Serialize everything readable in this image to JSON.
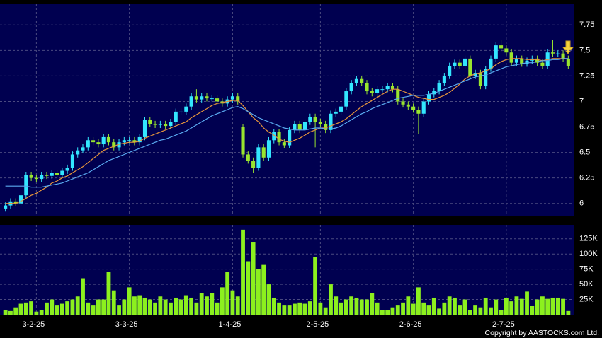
{
  "chart_data": [
    {
      "type": "candlestick",
      "up_color": "#33e6ff",
      "down_color": "#99e62e",
      "grid": true,
      "ylim": [
        5.88,
        7.96
      ],
      "yticks": [
        6,
        6.25,
        6.5,
        6.75,
        7,
        7.25,
        7.5,
        7.75
      ],
      "open": [
        5.95,
        5.98,
        6.02,
        6.0,
        6.08,
        6.28,
        6.25,
        6.24,
        6.28,
        6.27,
        6.3,
        6.28,
        6.32,
        6.35,
        6.48,
        6.52,
        6.55,
        6.62,
        6.6,
        6.58,
        6.65,
        6.6,
        6.55,
        6.6,
        6.62,
        6.62,
        6.6,
        6.65,
        6.82,
        6.78,
        6.77,
        6.78,
        6.76,
        6.8,
        6.9,
        6.9,
        6.95,
        7.05,
        7.02,
        7.05,
        7.03,
        7.03,
        7.0,
        6.98,
        7.02,
        7.05,
        6.75,
        6.48,
        6.42,
        6.35,
        6.55,
        6.45,
        6.62,
        6.7,
        6.6,
        6.57,
        6.72,
        6.78,
        6.72,
        6.8,
        6.85,
        6.8,
        6.78,
        6.72,
        6.88,
        6.9,
        6.95,
        7.1,
        7.18,
        7.22,
        7.18,
        7.1,
        7.08,
        7.12,
        7.12,
        7.15,
        7.12,
        7.0,
        6.97,
        6.95,
        6.92,
        6.88,
        7.0,
        7.07,
        7.1,
        7.18,
        7.25,
        7.35,
        7.38,
        7.35,
        7.42,
        7.25,
        7.28,
        7.15,
        7.32,
        7.42,
        7.55,
        7.52,
        7.48,
        7.38,
        7.42,
        7.37,
        7.4,
        7.42,
        7.38,
        7.35,
        7.48,
        7.47,
        7.47,
        7.42
      ],
      "high": [
        6.01,
        6.05,
        6.05,
        6.11,
        6.31,
        6.31,
        6.28,
        6.31,
        6.31,
        6.33,
        6.33,
        6.35,
        6.38,
        6.51,
        6.55,
        6.58,
        6.65,
        6.65,
        6.63,
        6.68,
        6.68,
        6.63,
        6.63,
        6.65,
        6.65,
        6.65,
        6.68,
        6.85,
        6.85,
        6.81,
        6.81,
        6.81,
        6.83,
        6.93,
        6.93,
        6.98,
        7.08,
        7.12,
        7.08,
        7.08,
        7.06,
        7.06,
        7.03,
        7.05,
        7.08,
        7.08,
        6.78,
        6.51,
        6.45,
        6.58,
        6.58,
        6.65,
        6.73,
        6.73,
        6.63,
        6.75,
        6.81,
        6.81,
        6.83,
        6.88,
        6.88,
        6.83,
        6.81,
        6.91,
        6.93,
        6.98,
        7.13,
        7.21,
        7.25,
        7.25,
        7.21,
        7.13,
        7.15,
        7.15,
        7.18,
        7.18,
        7.15,
        7.03,
        7.0,
        6.98,
        6.95,
        7.03,
        7.1,
        7.13,
        7.21,
        7.28,
        7.38,
        7.41,
        7.41,
        7.45,
        7.45,
        7.31,
        7.31,
        7.35,
        7.45,
        7.58,
        7.6,
        7.55,
        7.51,
        7.45,
        7.45,
        7.43,
        7.45,
        7.45,
        7.41,
        7.51,
        7.6,
        7.5,
        7.5,
        7.45
      ],
      "low": [
        5.92,
        5.95,
        5.97,
        5.97,
        6.05,
        6.22,
        6.21,
        6.21,
        6.24,
        6.24,
        6.25,
        6.25,
        6.29,
        6.32,
        6.45,
        6.49,
        6.52,
        6.57,
        6.55,
        6.55,
        6.57,
        6.52,
        6.52,
        6.57,
        6.59,
        6.57,
        6.57,
        6.62,
        6.75,
        6.74,
        6.74,
        6.73,
        6.73,
        6.77,
        6.87,
        6.87,
        6.92,
        6.99,
        6.99,
        7.0,
        7.0,
        6.97,
        6.95,
        6.95,
        6.99,
        6.97,
        6.45,
        6.39,
        6.3,
        6.32,
        6.42,
        6.42,
        6.59,
        6.57,
        6.54,
        6.54,
        6.69,
        6.69,
        6.69,
        6.77,
        6.55,
        6.75,
        6.69,
        6.69,
        6.85,
        6.87,
        6.92,
        7.07,
        7.15,
        7.15,
        7.07,
        7.05,
        7.05,
        7.09,
        7.09,
        7.09,
        6.97,
        6.94,
        6.92,
        6.89,
        6.68,
        6.85,
        6.97,
        7.04,
        7.07,
        7.15,
        7.22,
        7.32,
        7.32,
        7.32,
        7.22,
        7.22,
        7.12,
        7.12,
        7.29,
        7.39,
        7.49,
        7.45,
        7.35,
        7.35,
        7.34,
        7.34,
        7.37,
        7.35,
        7.32,
        7.32,
        7.44,
        7.44,
        7.39,
        7.32
      ],
      "close": [
        5.98,
        6.02,
        6.0,
        6.08,
        6.28,
        6.25,
        6.24,
        6.28,
        6.27,
        6.3,
        6.28,
        6.32,
        6.35,
        6.48,
        6.52,
        6.55,
        6.62,
        6.6,
        6.58,
        6.65,
        6.6,
        6.55,
        6.6,
        6.62,
        6.62,
        6.6,
        6.65,
        6.82,
        6.78,
        6.77,
        6.78,
        6.76,
        6.8,
        6.9,
        6.9,
        6.95,
        7.05,
        7.02,
        7.05,
        7.03,
        7.03,
        7.0,
        6.98,
        7.02,
        7.05,
        7.0,
        6.48,
        6.42,
        6.35,
        6.55,
        6.45,
        6.62,
        6.7,
        6.6,
        6.57,
        6.72,
        6.78,
        6.72,
        6.8,
        6.85,
        6.8,
        6.78,
        6.72,
        6.88,
        6.9,
        6.95,
        7.1,
        7.18,
        7.22,
        7.18,
        7.1,
        7.08,
        7.12,
        7.12,
        7.15,
        7.12,
        7.0,
        6.97,
        6.95,
        6.92,
        6.88,
        7.0,
        7.07,
        7.1,
        7.18,
        7.25,
        7.35,
        7.38,
        7.35,
        7.42,
        7.25,
        7.28,
        7.15,
        7.32,
        7.42,
        7.55,
        7.52,
        7.48,
        7.38,
        7.42,
        7.37,
        7.4,
        7.42,
        7.38,
        7.35,
        7.48,
        7.47,
        7.47,
        7.42,
        7.35
      ],
      "series": [
        {
          "color": "#e8963c",
          "values": [
            6.0,
            6.0,
            6.0,
            6.02,
            6.05,
            6.08,
            6.1,
            6.13,
            6.16,
            6.2,
            6.22,
            6.25,
            6.27,
            6.3,
            6.33,
            6.36,
            6.4,
            6.44,
            6.48,
            6.52,
            6.54,
            6.56,
            6.58,
            6.59,
            6.6,
            6.6,
            6.61,
            6.64,
            6.66,
            6.68,
            6.7,
            6.72,
            6.74,
            6.76,
            6.78,
            6.8,
            6.84,
            6.87,
            6.9,
            6.93,
            6.96,
            6.98,
            6.99,
            7.0,
            7.01,
            7.01,
            6.96,
            6.9,
            6.84,
            6.8,
            6.74,
            6.7,
            6.67,
            6.63,
            6.61,
            6.6,
            6.62,
            6.64,
            6.67,
            6.7,
            6.72,
            6.74,
            6.74,
            6.76,
            6.78,
            6.8,
            6.83,
            6.87,
            6.91,
            6.95,
            6.98,
            7.01,
            7.04,
            7.07,
            7.1,
            7.12,
            7.12,
            7.1,
            7.08,
            7.06,
            7.04,
            7.03,
            7.02,
            7.02,
            7.04,
            7.06,
            7.09,
            7.13,
            7.17,
            7.22,
            7.25,
            7.27,
            7.28,
            7.3,
            7.32,
            7.36,
            7.39,
            7.41,
            7.42,
            7.42,
            7.42,
            7.41,
            7.41,
            7.41,
            7.4,
            7.41,
            7.42,
            7.42,
            7.42,
            7.42
          ]
        },
        {
          "color": "#5aaaf0",
          "values": [
            6.17,
            6.17,
            6.17,
            6.17,
            6.17,
            6.16,
            6.16,
            6.16,
            6.17,
            6.18,
            6.19,
            6.2,
            6.22,
            6.24,
            6.26,
            6.28,
            6.3,
            6.33,
            6.36,
            6.39,
            6.42,
            6.44,
            6.46,
            6.48,
            6.5,
            6.52,
            6.54,
            6.56,
            6.58,
            6.6,
            6.62,
            6.63,
            6.65,
            6.67,
            6.69,
            6.71,
            6.74,
            6.77,
            6.8,
            6.83,
            6.86,
            6.88,
            6.9,
            6.92,
            6.94,
            6.95,
            6.93,
            6.9,
            6.87,
            6.84,
            6.82,
            6.8,
            6.78,
            6.76,
            6.74,
            6.73,
            6.72,
            6.72,
            6.72,
            6.73,
            6.74,
            6.74,
            6.73,
            6.73,
            6.74,
            6.76,
            6.79,
            6.82,
            6.85,
            6.88,
            6.9,
            6.93,
            6.95,
            6.97,
            6.99,
            7.01,
            7.03,
            7.04,
            7.05,
            7.06,
            7.06,
            7.06,
            7.07,
            7.08,
            7.1,
            7.12,
            7.14,
            7.16,
            7.18,
            7.2,
            7.22,
            7.24,
            7.25,
            7.26,
            7.28,
            7.3,
            7.32,
            7.34,
            7.35,
            7.36,
            7.37,
            7.38,
            7.38,
            7.39,
            7.4,
            7.4,
            7.41,
            7.41,
            7.42,
            7.42
          ]
        }
      ]
    },
    {
      "type": "bar",
      "color": "#8cf01e",
      "grid": true,
      "ylim": [
        0,
        148000
      ],
      "yticks": [
        {
          "value": 25000,
          "label": "25K"
        },
        {
          "value": 50000,
          "label": "50K"
        },
        {
          "value": 75000,
          "label": "75K"
        },
        {
          "value": 100000,
          "label": "100K"
        },
        {
          "value": 125000,
          "label": "125K"
        }
      ],
      "categories": [
        null,
        null,
        null,
        null,
        null,
        null,
        "3-2-25",
        null,
        null,
        null,
        null,
        null,
        null,
        null,
        null,
        null,
        null,
        null,
        null,
        null,
        null,
        null,
        null,
        null,
        "3-3-25",
        null,
        null,
        null,
        null,
        null,
        null,
        null,
        null,
        null,
        null,
        null,
        null,
        null,
        null,
        null,
        null,
        null,
        null,
        null,
        "1-4-25",
        null,
        null,
        null,
        null,
        null,
        null,
        null,
        null,
        null,
        null,
        null,
        null,
        null,
        null,
        null,
        null,
        "2-5-25",
        null,
        null,
        null,
        null,
        null,
        null,
        null,
        null,
        null,
        null,
        null,
        null,
        null,
        null,
        null,
        null,
        null,
        "2-6-25",
        null,
        null,
        null,
        null,
        null,
        null,
        null,
        null,
        null,
        null,
        null,
        null,
        null,
        null,
        null,
        null,
        null,
        "2-7-25",
        null,
        null,
        null,
        null,
        null,
        null,
        null,
        null,
        null,
        null,
        null,
        null
      ],
      "values": [
        8000,
        6000,
        12000,
        18000,
        20000,
        22000,
        5000,
        8000,
        20000,
        25000,
        15000,
        18000,
        22000,
        25000,
        30000,
        60000,
        20000,
        15000,
        25000,
        25000,
        70000,
        40000,
        15000,
        25000,
        45000,
        30000,
        32000,
        28000,
        25000,
        20000,
        30000,
        25000,
        20000,
        28000,
        25000,
        32000,
        28000,
        20000,
        35000,
        30000,
        35000,
        20000,
        45000,
        70000,
        40000,
        30000,
        140000,
        88000,
        120000,
        75000,
        82000,
        50000,
        28000,
        20000,
        15000,
        15000,
        18000,
        20000,
        18000,
        22000,
        95000,
        20000,
        12000,
        50000,
        30000,
        20000,
        25000,
        30000,
        28000,
        25000,
        25000,
        35000,
        20000,
        8000,
        8000,
        12000,
        15000,
        20000,
        30000,
        18000,
        45000,
        20000,
        15000,
        28000,
        10000,
        20000,
        30000,
        28000,
        15000,
        25000,
        8000,
        15000,
        12000,
        28000,
        12000,
        25000,
        8000,
        28000,
        22000,
        30000,
        26000,
        38000,
        14000,
        25000,
        30000,
        26000,
        28000,
        28000,
        26000,
        6000
      ]
    }
  ],
  "copyright": "Copyright by AASTOCKS.com Ltd."
}
